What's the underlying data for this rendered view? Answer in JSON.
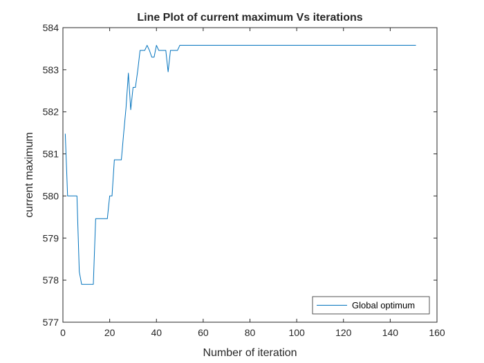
{
  "chart_data": {
    "type": "line",
    "title": "Line Plot of current maximum Vs iterations",
    "xlabel": "Number of iteration",
    "ylabel": "current maximum",
    "xlim": [
      0,
      160
    ],
    "ylim": [
      577,
      584
    ],
    "xticks": [
      0,
      20,
      40,
      60,
      80,
      100,
      120,
      140,
      160
    ],
    "yticks": [
      577,
      578,
      579,
      580,
      581,
      582,
      583,
      584
    ],
    "grid": false,
    "legend_position": "bottom-right",
    "series": [
      {
        "name": "Global optimum",
        "color": "#0072BD",
        "x": [
          1,
          2,
          3,
          4,
          5,
          6,
          7,
          8,
          9,
          10,
          11,
          12,
          13,
          14,
          15,
          16,
          17,
          18,
          19,
          20,
          21,
          22,
          23,
          24,
          25,
          26,
          27,
          28,
          29,
          30,
          31,
          32,
          33,
          34,
          35,
          36,
          37,
          38,
          39,
          40,
          41,
          42,
          43,
          44,
          45,
          46,
          47,
          48,
          49,
          50,
          51,
          60,
          80,
          100,
          120,
          140,
          151
        ],
        "y": [
          581.48,
          580.0,
          580.0,
          580.0,
          580.0,
          580.0,
          578.2,
          577.9,
          577.9,
          577.9,
          577.9,
          577.9,
          577.9,
          579.46,
          579.46,
          579.46,
          579.46,
          579.46,
          579.46,
          580.0,
          580.0,
          580.86,
          580.86,
          580.86,
          580.86,
          581.5,
          582.1,
          582.92,
          582.05,
          582.58,
          582.58,
          582.98,
          583.46,
          583.46,
          583.46,
          583.58,
          583.46,
          583.3,
          583.3,
          583.58,
          583.46,
          583.46,
          583.46,
          583.46,
          582.95,
          583.46,
          583.46,
          583.46,
          583.46,
          583.58,
          583.58,
          583.58,
          583.58,
          583.58,
          583.58,
          583.58,
          583.58
        ]
      }
    ]
  }
}
